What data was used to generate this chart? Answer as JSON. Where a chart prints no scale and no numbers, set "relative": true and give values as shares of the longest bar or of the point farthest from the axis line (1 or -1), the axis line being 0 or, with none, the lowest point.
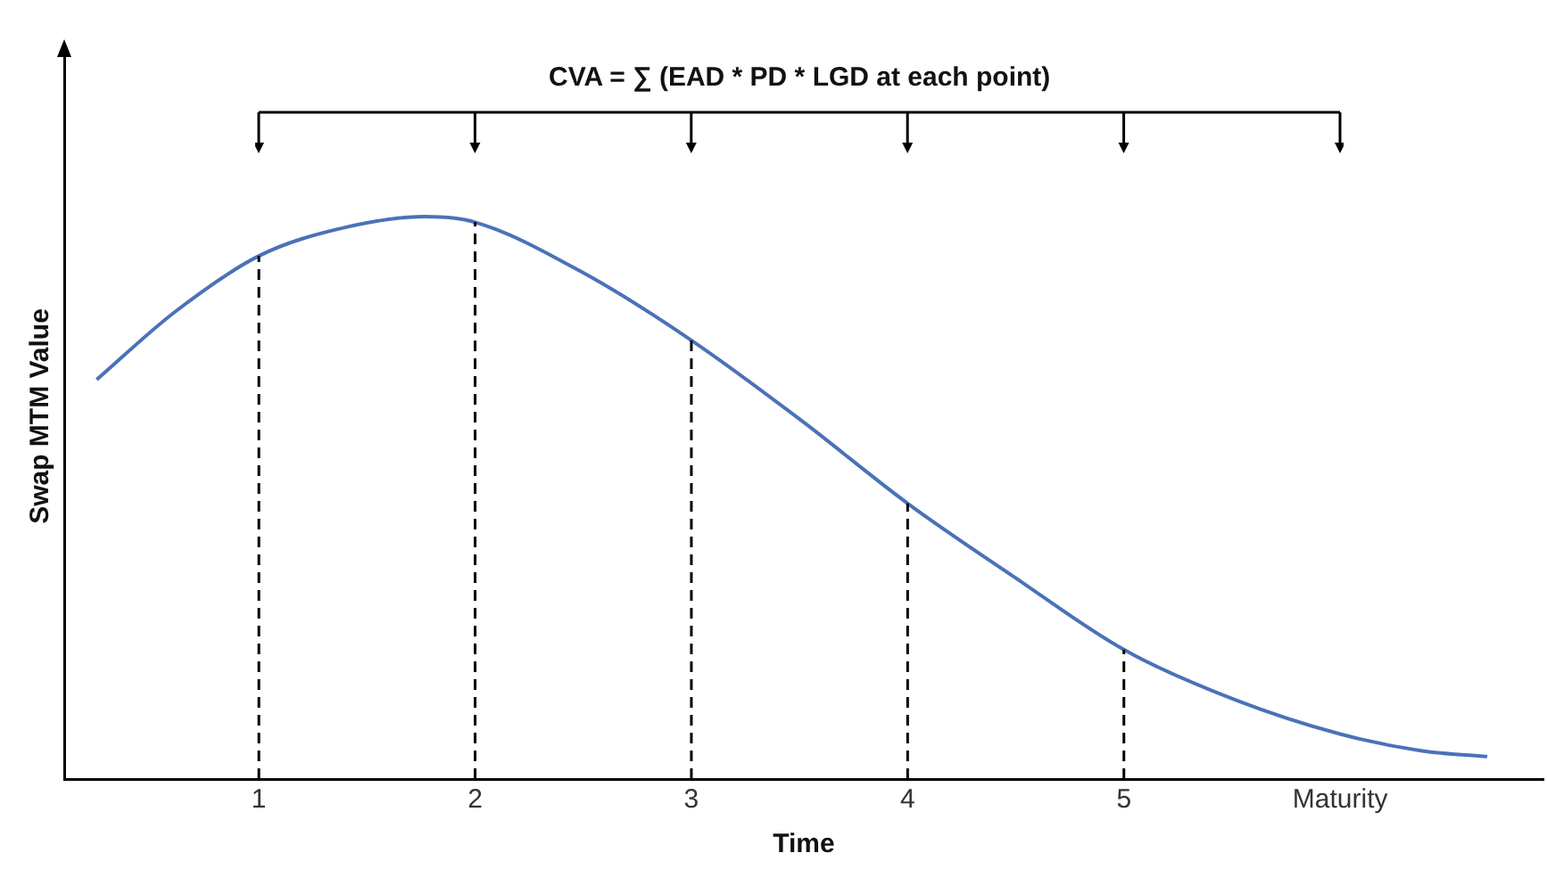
{
  "chart_data": {
    "type": "line",
    "relative": true,
    "xlabel": "Time",
    "ylabel": "Swap MTM Value",
    "annotations": [
      "CVA = ∑ (EAD * PD * LGD at each point)"
    ],
    "xlim": [
      0.1,
      6.94
    ],
    "xticks": [
      1,
      2,
      3,
      4,
      5,
      {
        "value": 6,
        "label": "Maturity"
      }
    ],
    "x": [
      0.25,
      0.61,
      1,
      1.39,
      1.77,
      2,
      2.5,
      3,
      3.5,
      4,
      4.49,
      5,
      5.52,
      6,
      6.38,
      6.68
    ],
    "series": [
      {
        "color": "#4a72b8",
        "values": [
          0.71,
          0.83,
          0.93,
          0.98,
          1,
          0.99,
          0.9,
          0.78,
          0.64,
          0.49,
          0.36,
          0.23,
          0.14,
          0.08,
          0.05,
          0.04
        ]
      }
    ],
    "ref_lines": [
      {
        "axis": "x",
        "value": 1,
        "line_style": "dashed",
        "color": "#000000"
      },
      {
        "axis": "x",
        "value": 2,
        "line_style": "dashed",
        "color": "#000000"
      },
      {
        "axis": "x",
        "value": 3,
        "line_style": "dashed",
        "color": "#000000"
      },
      {
        "axis": "x",
        "value": 4,
        "line_style": "dashed",
        "color": "#000000"
      },
      {
        "axis": "x",
        "value": 5,
        "line_style": "dashed",
        "color": "#000000"
      }
    ],
    "grid": false,
    "legend": false,
    "marker": "none",
    "line_style": "solid"
  }
}
